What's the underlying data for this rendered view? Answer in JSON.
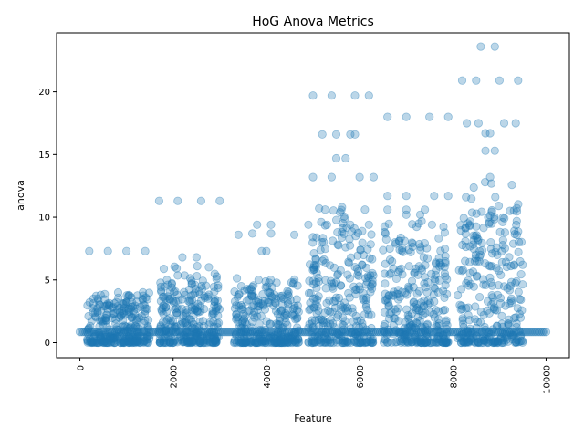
{
  "chart_data": {
    "type": "scatter",
    "title": "HoG Anova Metrics",
    "xlabel": "Feature",
    "ylabel": "anova",
    "xlim": [
      -500,
      10500
    ],
    "ylim": [
      -1.2,
      24.7
    ],
    "xticks": [
      0,
      2000,
      4000,
      6000,
      8000,
      10000
    ],
    "xtick_labels": [
      "0",
      "2000",
      "4000",
      "6000",
      "8000",
      "10000"
    ],
    "xtick_rotation": 90,
    "yticks": [
      0,
      5,
      10,
      15,
      20
    ],
    "ytick_labels": [
      "0",
      "5",
      "10",
      "15",
      "20"
    ],
    "grid": false,
    "legend": "none",
    "marker_color": "#1f77b4",
    "marker_alpha": 0.3,
    "n_points": 10000,
    "baseline_value": 0.85,
    "clusters": [
      {
        "x": [
          150,
          1500
        ],
        "y": [
          0,
          7.3
        ]
      },
      {
        "x": [
          1700,
          3000
        ],
        "y": [
          0,
          11.3
        ]
      },
      {
        "x": [
          3300,
          4700
        ],
        "y": [
          0,
          9.4
        ]
      },
      {
        "x": [
          4900,
          6300
        ],
        "y": [
          0,
          19.7
        ]
      },
      {
        "x": [
          6500,
          7900
        ],
        "y": [
          0,
          18.0
        ]
      },
      {
        "x": [
          8100,
          9500
        ],
        "y": [
          0,
          23.6
        ]
      }
    ],
    "notable_points": [
      {
        "x": 8600,
        "y": 23.6
      },
      {
        "x": 8900,
        "y": 23.6
      },
      {
        "x": 8200,
        "y": 20.9
      },
      {
        "x": 8500,
        "y": 20.9
      },
      {
        "x": 9000,
        "y": 20.9
      },
      {
        "x": 9400,
        "y": 20.9
      },
      {
        "x": 5000,
        "y": 19.7
      },
      {
        "x": 5400,
        "y": 19.7
      },
      {
        "x": 5900,
        "y": 19.7
      },
      {
        "x": 6200,
        "y": 19.7
      },
      {
        "x": 6600,
        "y": 18.0
      },
      {
        "x": 7000,
        "y": 18.0
      },
      {
        "x": 7500,
        "y": 18.0
      },
      {
        "x": 7900,
        "y": 18.0
      },
      {
        "x": 8300,
        "y": 17.5
      },
      {
        "x": 8550,
        "y": 17.5
      },
      {
        "x": 9100,
        "y": 17.5
      },
      {
        "x": 9350,
        "y": 17.5
      },
      {
        "x": 8700,
        "y": 16.7
      },
      {
        "x": 8800,
        "y": 16.7
      },
      {
        "x": 5200,
        "y": 16.6
      },
      {
        "x": 5500,
        "y": 16.6
      },
      {
        "x": 5800,
        "y": 16.6
      },
      {
        "x": 5900,
        "y": 16.6
      },
      {
        "x": 8700,
        "y": 15.3
      },
      {
        "x": 8900,
        "y": 15.3
      },
      {
        "x": 5500,
        "y": 14.7
      },
      {
        "x": 5700,
        "y": 14.7
      },
      {
        "x": 5000,
        "y": 13.2
      },
      {
        "x": 5400,
        "y": 13.2
      },
      {
        "x": 6000,
        "y": 13.2
      },
      {
        "x": 6300,
        "y": 13.2
      },
      {
        "x": 8800,
        "y": 13.2
      },
      {
        "x": 6600,
        "y": 11.7
      },
      {
        "x": 7000,
        "y": 11.7
      },
      {
        "x": 7600,
        "y": 11.7
      },
      {
        "x": 7900,
        "y": 11.7
      },
      {
        "x": 1700,
        "y": 11.3
      },
      {
        "x": 2100,
        "y": 11.3
      },
      {
        "x": 2600,
        "y": 11.3
      },
      {
        "x": 3000,
        "y": 11.3
      },
      {
        "x": 6600,
        "y": 10.6
      },
      {
        "x": 7000,
        "y": 10.6
      },
      {
        "x": 7400,
        "y": 10.6
      },
      {
        "x": 7000,
        "y": 10.2
      },
      {
        "x": 7300,
        "y": 10.2
      },
      {
        "x": 4900,
        "y": 9.4
      },
      {
        "x": 5300,
        "y": 9.4
      },
      {
        "x": 5800,
        "y": 9.4
      },
      {
        "x": 6200,
        "y": 9.4
      },
      {
        "x": 3800,
        "y": 9.4
      },
      {
        "x": 4100,
        "y": 9.4
      },
      {
        "x": 3400,
        "y": 8.6
      },
      {
        "x": 3700,
        "y": 8.7
      },
      {
        "x": 4100,
        "y": 8.7
      },
      {
        "x": 4600,
        "y": 8.6
      },
      {
        "x": 200,
        "y": 7.3
      },
      {
        "x": 600,
        "y": 7.3
      },
      {
        "x": 1000,
        "y": 7.3
      },
      {
        "x": 1400,
        "y": 7.3
      },
      {
        "x": 3900,
        "y": 7.3
      },
      {
        "x": 4000,
        "y": 7.3
      },
      {
        "x": 2200,
        "y": 6.8
      },
      {
        "x": 2500,
        "y": 6.8
      }
    ]
  }
}
